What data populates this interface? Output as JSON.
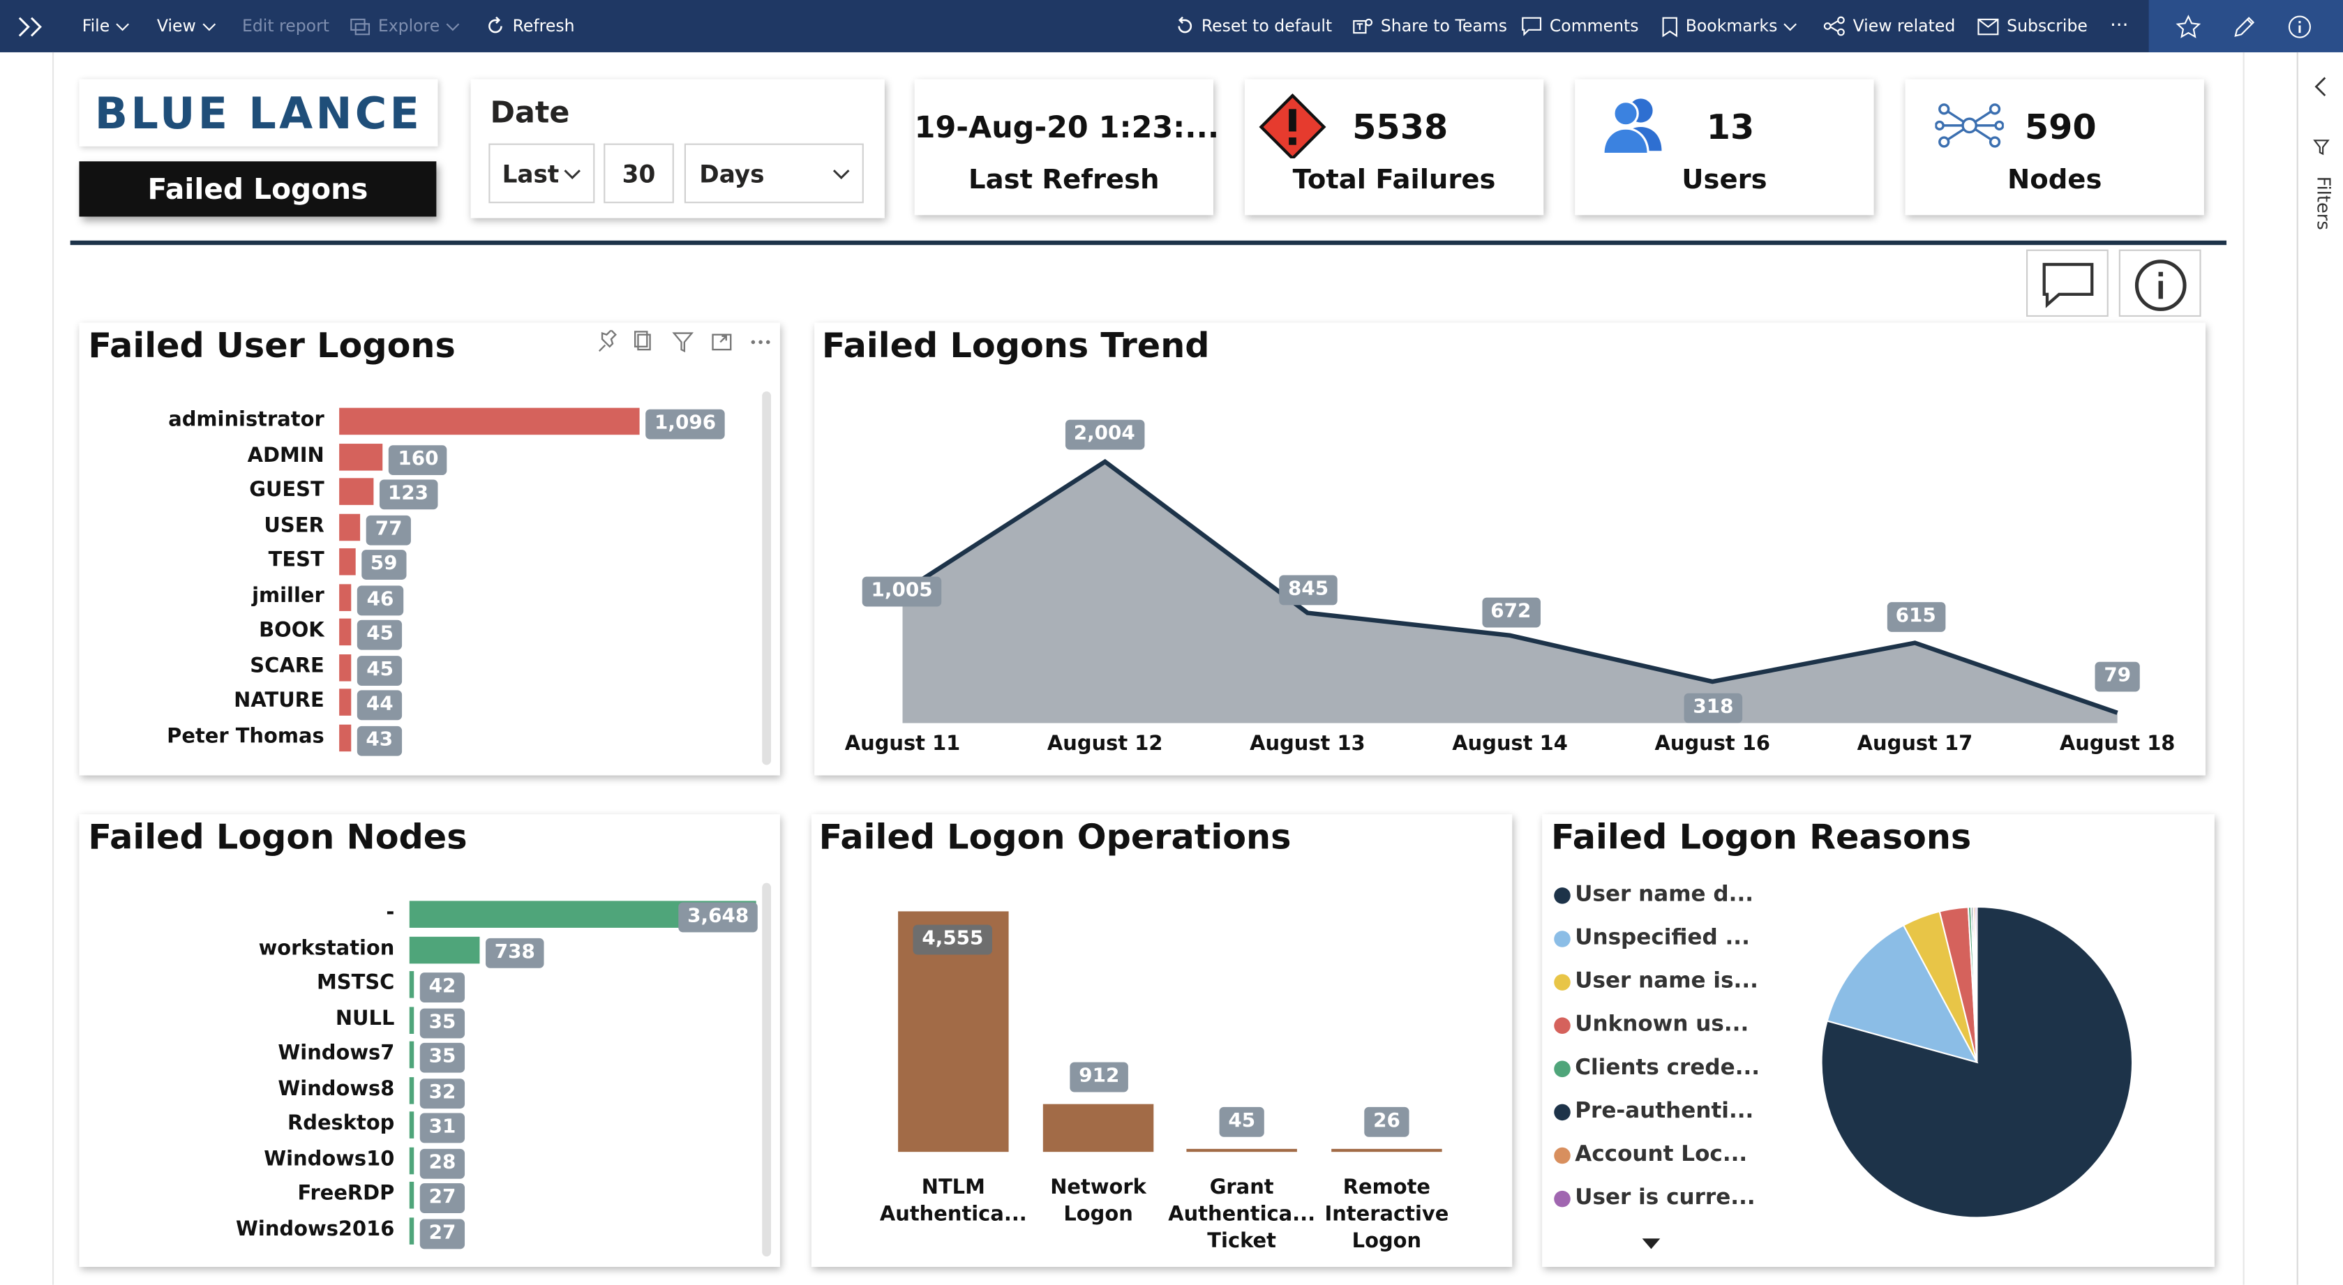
{
  "toolbar": {
    "file": "File",
    "view": "View",
    "edit_report": "Edit report",
    "explore": "Explore",
    "refresh": "Refresh",
    "reset": "Reset to default",
    "share_teams": "Share to Teams",
    "comments": "Comments",
    "bookmarks": "Bookmarks",
    "view_related": "View related",
    "subscribe": "Subscribe",
    "more": "···"
  },
  "filters_pane": {
    "label": "Filters"
  },
  "brand": {
    "logo": "BLUE LANCE",
    "report_title": "Failed Logons"
  },
  "date_filter": {
    "label": "Date",
    "mode": "Last",
    "count": "30",
    "unit": "Days"
  },
  "kpis": {
    "last_refresh": {
      "value": "19-Aug-20 1:23:...",
      "label": "Last Refresh"
    },
    "total_failures": {
      "value": "5538",
      "label": "Total Failures"
    },
    "users": {
      "value": "13",
      "label": "Users"
    },
    "nodes": {
      "value": "590",
      "label": "Nodes"
    }
  },
  "colors": {
    "topbar": "#1f3864",
    "user_bars": "#d5625c",
    "node_bars": "#4fa57a",
    "ops_bars": "#a26b47",
    "trend_fill": "#aab0b7",
    "trend_line": "#1d3349",
    "data_label": "#8a96a2"
  },
  "chart_data": [
    {
      "type": "bar",
      "title": "Failed User Logons",
      "orientation": "horizontal",
      "categories": [
        "administrator",
        "ADMIN",
        "GUEST",
        "USER",
        "TEST",
        "jmiller",
        "BOOK",
        "SCARE",
        "NATURE",
        "Peter Thomas"
      ],
      "values": [
        1096,
        160,
        123,
        77,
        59,
        46,
        45,
        45,
        44,
        43
      ],
      "labels": [
        "1,096",
        "160",
        "123",
        "77",
        "59",
        "46",
        "45",
        "45",
        "44",
        "43"
      ]
    },
    {
      "type": "area",
      "title": "Failed Logons Trend",
      "x": [
        "August 11",
        "August 12",
        "August 13",
        "August 14",
        "August 16",
        "August 17",
        "August 18"
      ],
      "values": [
        1005,
        2004,
        845,
        672,
        318,
        615,
        79
      ],
      "labels": [
        "1,005",
        "2,004",
        "845",
        "672",
        "318",
        "615",
        "79"
      ]
    },
    {
      "type": "bar",
      "title": "Failed Logon Nodes",
      "orientation": "horizontal",
      "categories": [
        "-",
        "workstation",
        "MSTSC",
        "NULL",
        "Windows7",
        "Windows8",
        "Rdesktop",
        "Windows10",
        "FreeRDP",
        "Windows2016"
      ],
      "values": [
        3648,
        738,
        42,
        35,
        35,
        32,
        31,
        28,
        27,
        27
      ],
      "labels": [
        "3,648",
        "738",
        "42",
        "35",
        "35",
        "32",
        "31",
        "28",
        "27",
        "27"
      ]
    },
    {
      "type": "bar",
      "title": "Failed Logon Operations",
      "categories": [
        [
          "NTLM",
          "Authentica..."
        ],
        [
          "Network",
          "Logon"
        ],
        [
          "Grant",
          "Authentica...",
          "Ticket"
        ],
        [
          "Remote",
          "Interactive",
          "Logon"
        ]
      ],
      "values": [
        4555,
        912,
        45,
        26
      ],
      "labels": [
        "4,555",
        "912",
        "45",
        "26"
      ]
    },
    {
      "type": "pie",
      "title": "Failed Logon Reasons",
      "legend": [
        {
          "name": "User name d...",
          "color": "#1d3349"
        },
        {
          "name": "Unspecified ...",
          "color": "#8bbde6"
        },
        {
          "name": "User name is...",
          "color": "#e8c547"
        },
        {
          "name": "Unknown us...",
          "color": "#d5625c"
        },
        {
          "name": "Clients crede...",
          "color": "#4fa57a"
        },
        {
          "name": "Pre-authenti...",
          "color": "#1d3349"
        },
        {
          "name": "Account Loc...",
          "color": "#d88f5e"
        },
        {
          "name": "User is curre...",
          "color": "#a066b0"
        }
      ],
      "values": [
        0.8,
        0.13,
        0.04,
        0.03,
        0.003,
        0.002,
        0.002,
        0.002
      ]
    }
  ]
}
